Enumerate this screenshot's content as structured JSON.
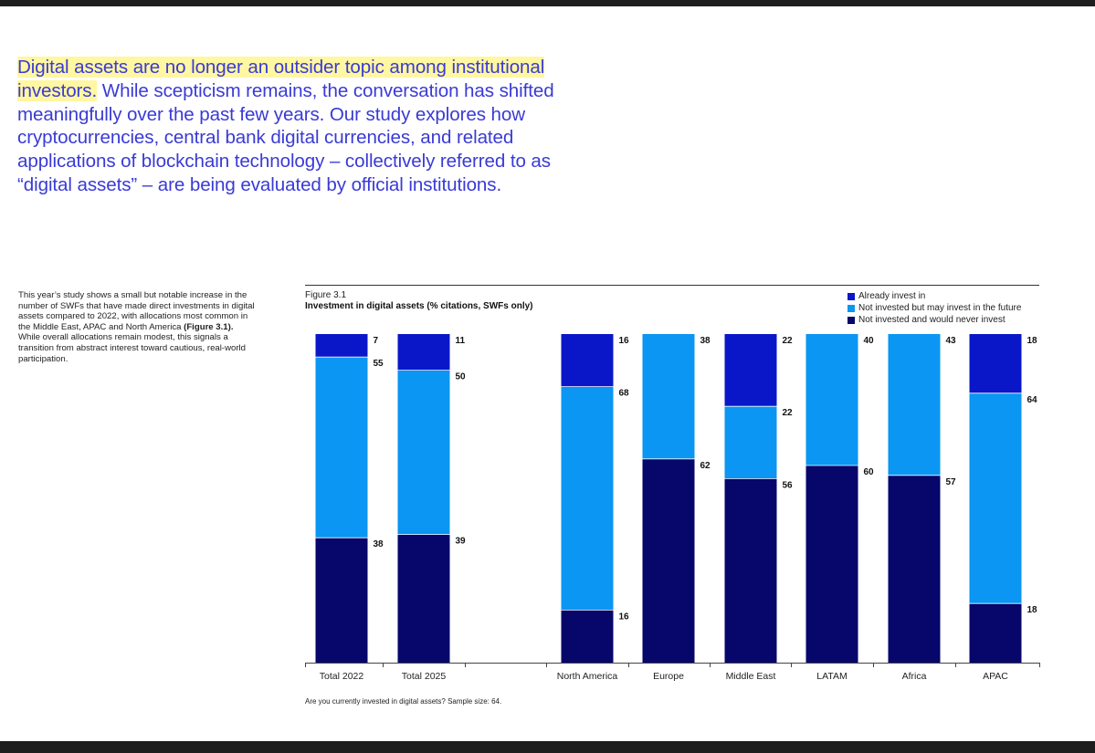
{
  "intro": {
    "highlight": "Digital assets are no longer an outsider topic among institutional investors.",
    "rest": " While scepticism remains, the conversation has shifted meaningfully over the past few years. Our study explores how cryptocurrencies, central bank digital currencies, and related applications of blockchain technology – collectively referred to as “digital assets” – are being evaluated by official institutions."
  },
  "body": {
    "text_before": "This year’s study shows a small but notable increase in the number of SWFs that have made direct investments in digital assets compared to 2022, with allocations most common in the Middle East, APAC and North America ",
    "figure_ref": "(Figure 3.1).",
    "text_after": " While overall allocations remain modest, this signals a transition from abstract interest toward cautious, real-world participation."
  },
  "figure": {
    "label": "Figure 3.1",
    "title": "Investment in digital assets (% citations, SWFs only)",
    "note": "Are you currently invested in digital assets? Sample size: 64."
  },
  "colors": {
    "already": "#0a17c9",
    "maybe": "#0a96f2",
    "never": "#06066b"
  },
  "chart_data": {
    "type": "bar",
    "stacked": true,
    "categories": [
      "Total 2022",
      "Total 2025",
      "North America",
      "Europe",
      "Middle East",
      "LATAM",
      "Africa",
      "APAC"
    ],
    "series": [
      {
        "name": "Not invested and would never invest",
        "values": [
          38,
          39,
          16,
          62,
          56,
          60,
          57,
          18
        ]
      },
      {
        "name": "Not invested but may invest in the future",
        "values": [
          55,
          50,
          68,
          38,
          22,
          40,
          43,
          64
        ]
      },
      {
        "name": "Already invest in",
        "values": [
          7,
          11,
          16,
          0,
          22,
          0,
          0,
          18
        ]
      }
    ],
    "ylim": [
      0,
      100
    ],
    "legend_position": "top-right",
    "legend_order": [
      "Already invest in",
      "Not invested but may invest in the future",
      "Not invested and would never invest"
    ],
    "grid": false
  }
}
